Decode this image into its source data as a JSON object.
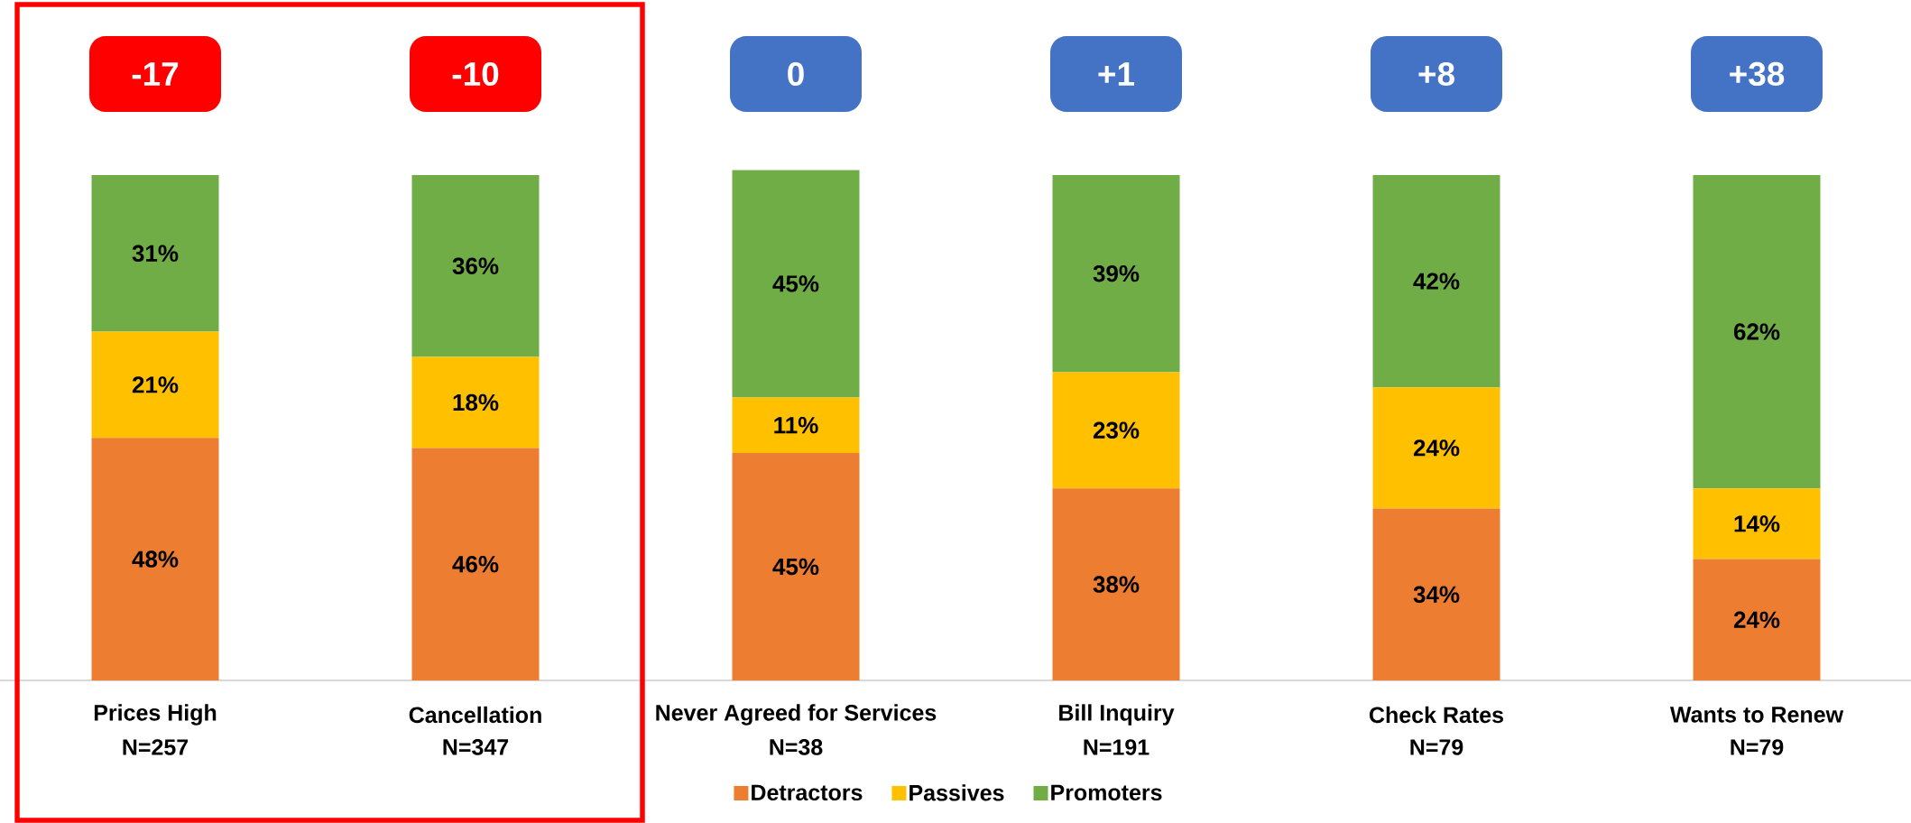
{
  "chart_data": {
    "type": "bar",
    "stacked": true,
    "categories": [
      "Prices High",
      "Cancellation",
      "Never Agreed for Services",
      "Bill Inquiry",
      "Check Rates",
      "Wants to Renew"
    ],
    "series": [
      {
        "name": "Detractors",
        "color": "#ed7d31",
        "values": [
          48,
          46,
          45,
          38,
          34,
          24
        ],
        "value_labels": [
          "48%",
          "46%",
          "45%",
          "38%",
          "34%",
          "24%"
        ]
      },
      {
        "name": "Passives",
        "color": "#ffc000",
        "values": [
          21,
          18,
          11,
          23,
          24,
          14
        ],
        "value_labels": [
          "21%",
          "18%",
          "11%",
          "23%",
          "24%",
          "14%"
        ]
      },
      {
        "name": "Promoters",
        "color": "#70ad47",
        "values": [
          31,
          36,
          45,
          39,
          42,
          62
        ],
        "value_labels": [
          "31%",
          "36%",
          "45%",
          "39%",
          "42%",
          "62%"
        ]
      }
    ],
    "annotations": [
      "-17",
      "-10",
      "0",
      "+1",
      "+8",
      "+38",
      "N=257",
      "N=347",
      "N=38",
      "N=191",
      "N=79",
      "N=79"
    ],
    "legend": "bottom"
  }
}
